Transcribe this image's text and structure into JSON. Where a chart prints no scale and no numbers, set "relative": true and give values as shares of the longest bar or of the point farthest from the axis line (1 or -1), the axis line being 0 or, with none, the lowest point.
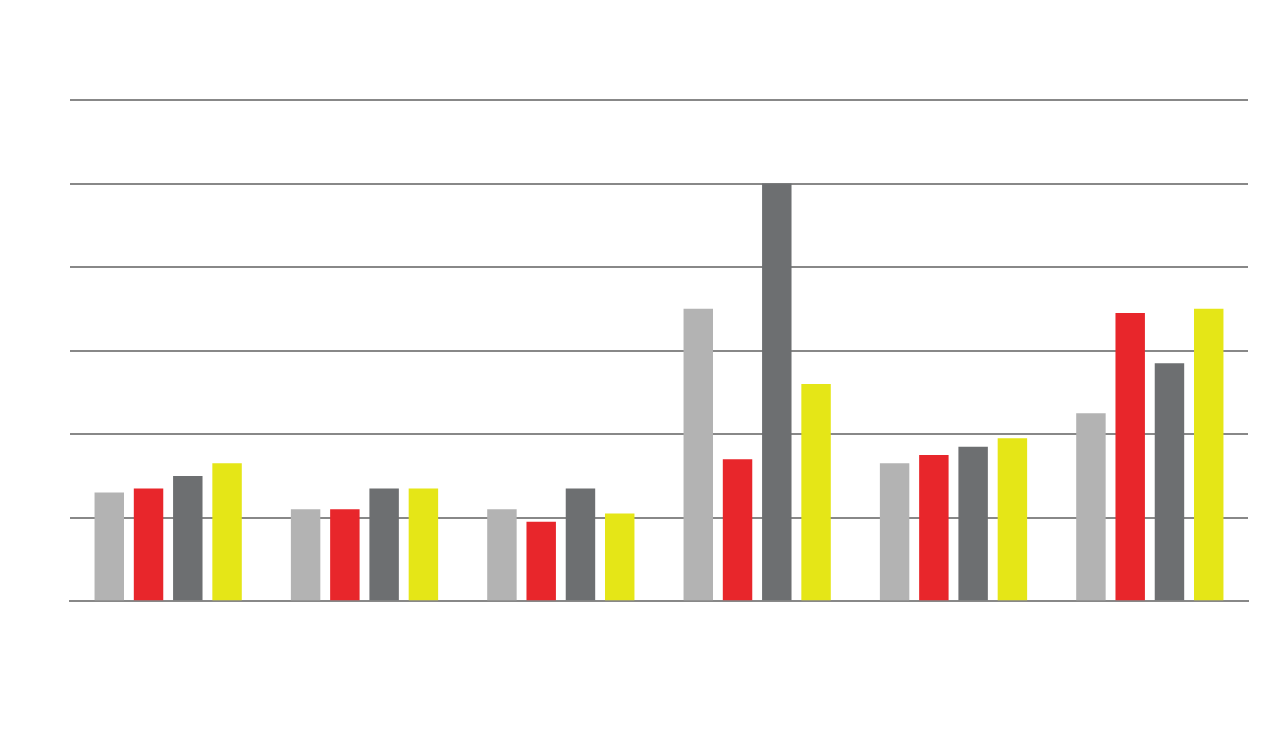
{
  "chart_data": {
    "type": "bar",
    "relative": true,
    "grid": "y",
    "categories": [
      null,
      null,
      null,
      null,
      null,
      null
    ],
    "series": [
      {
        "color": "#b3b3b3",
        "values": [
          0.26,
          0.22,
          0.22,
          0.7,
          0.33,
          0.45
        ]
      },
      {
        "color": "#e8262b",
        "values": [
          0.27,
          0.22,
          0.19,
          0.34,
          0.35,
          0.69
        ]
      },
      {
        "color": "#6d6f71",
        "values": [
          0.3,
          0.27,
          0.27,
          1,
          0.37,
          0.57
        ]
      },
      {
        "color": "#e5e617",
        "values": [
          0.33,
          0.27,
          0.21,
          0.52,
          0.39,
          0.7
        ]
      }
    ]
  }
}
